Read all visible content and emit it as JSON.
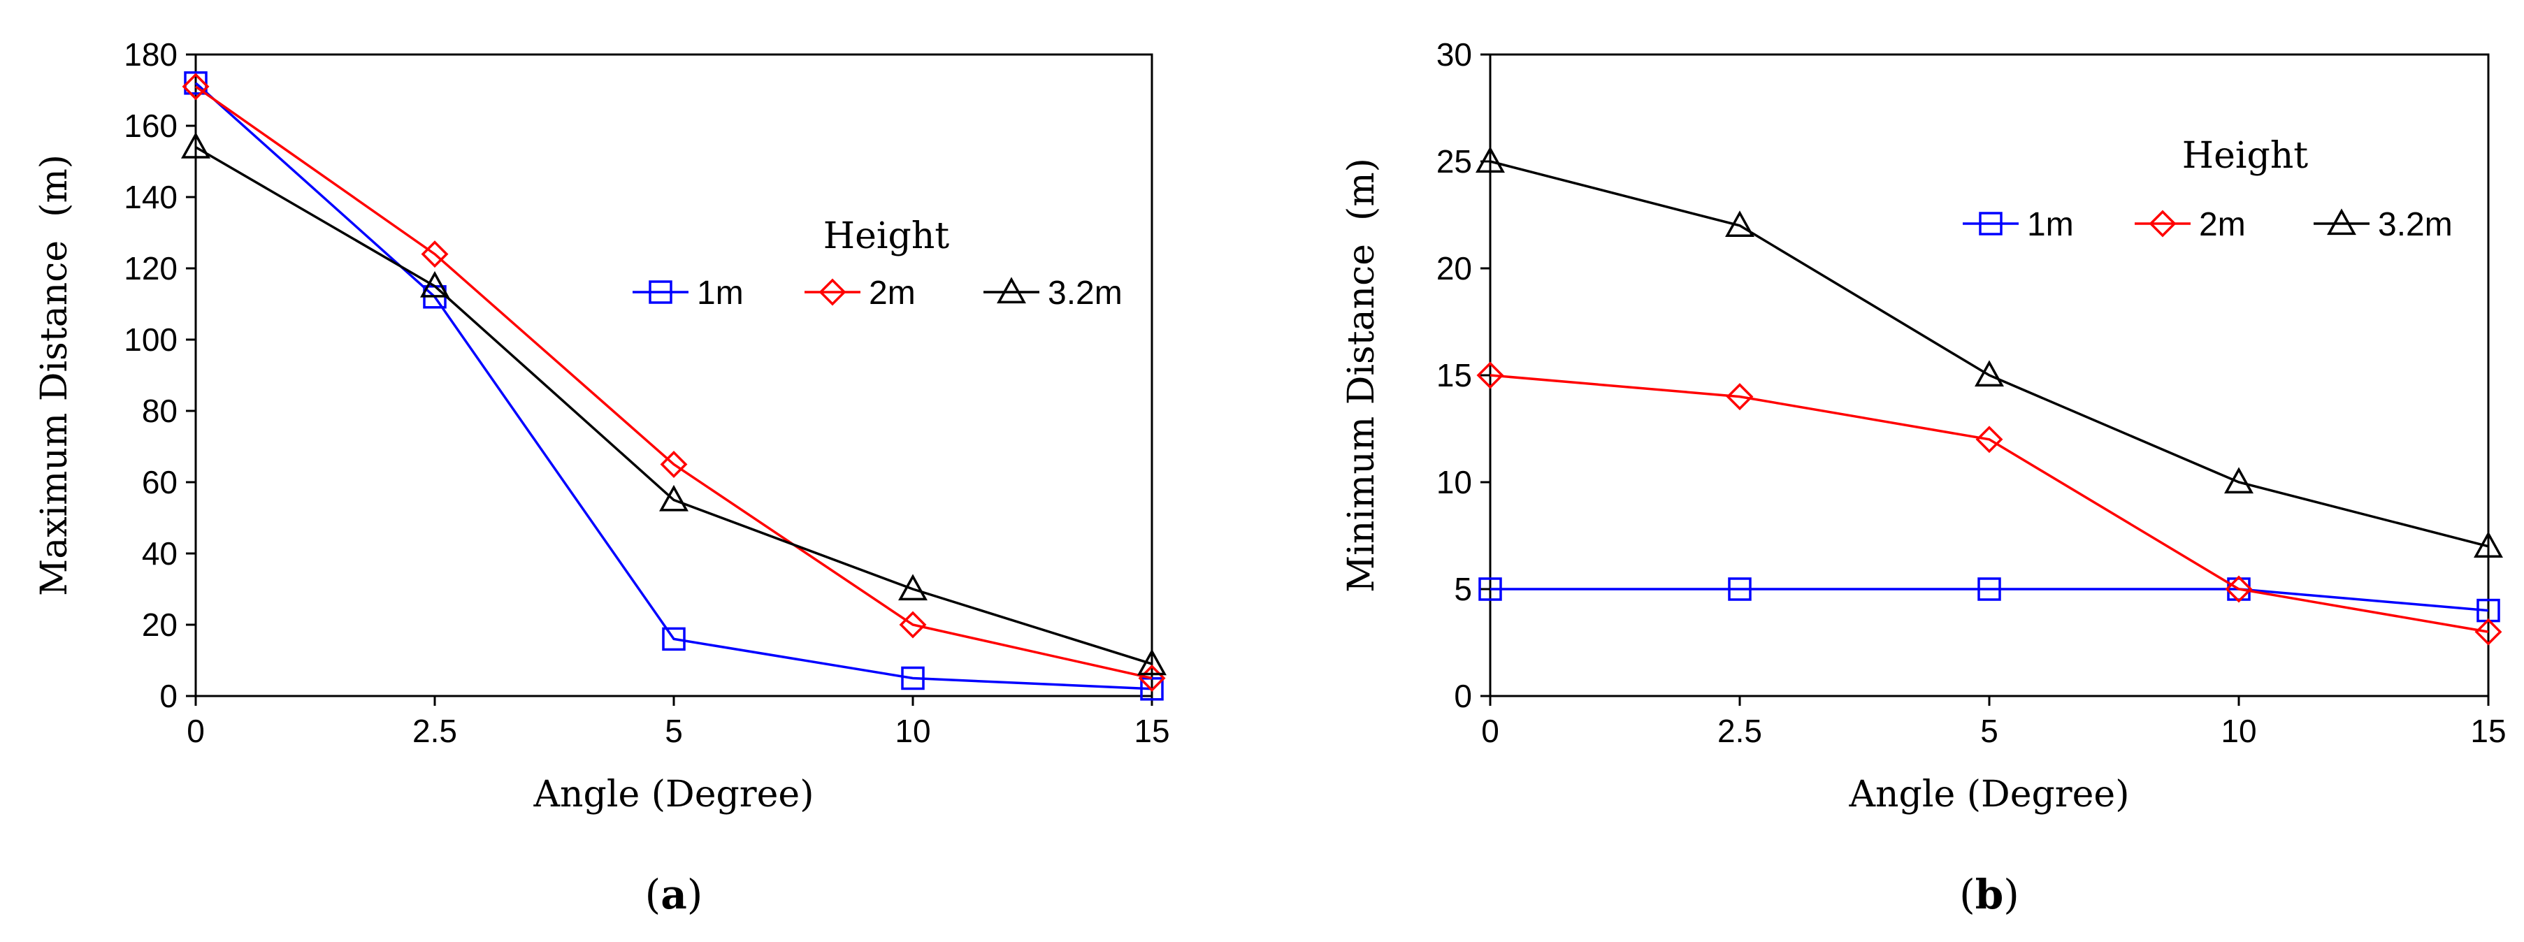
{
  "chart_data": [
    {
      "type": "line",
      "panel_label": "(a)",
      "panel_prefix": "(",
      "panel_letter": "a",
      "panel_suffix": ")",
      "categories": [
        "0",
        "2.5",
        "5",
        "10",
        "15"
      ],
      "xlabel": "Angle (Degree)",
      "ylabel": "Maximum Distance  (m)",
      "ylim": [
        0,
        180
      ],
      "yticks": [
        0,
        20,
        40,
        60,
        80,
        100,
        120,
        140,
        160,
        180
      ],
      "legend_title": "Height",
      "legend_position": "top-right",
      "series": [
        {
          "name": "1m",
          "color": "#0000FF",
          "marker": "square",
          "values": [
            172,
            112,
            16,
            5,
            2
          ]
        },
        {
          "name": "2m",
          "color": "#FF0000",
          "marker": "diamond",
          "values": [
            171,
            124,
            65,
            20,
            5
          ]
        },
        {
          "name": "3.2m",
          "color": "#000000",
          "marker": "triangle",
          "values": [
            154,
            115,
            55,
            30,
            9
          ]
        }
      ]
    },
    {
      "type": "line",
      "panel_label": "(b)",
      "panel_prefix": "(",
      "panel_letter": "b",
      "panel_suffix": ")",
      "categories": [
        "0",
        "2.5",
        "5",
        "10",
        "15"
      ],
      "xlabel": "Angle (Degree)",
      "ylabel": "Minimum Distance  (m)",
      "ylim": [
        0,
        30
      ],
      "yticks": [
        0,
        5,
        10,
        15,
        20,
        25,
        30
      ],
      "legend_title": "Height",
      "legend_position": "top-right",
      "series": [
        {
          "name": "1m",
          "color": "#0000FF",
          "marker": "square",
          "values": [
            5,
            5,
            5,
            5,
            4
          ]
        },
        {
          "name": "2m",
          "color": "#FF0000",
          "marker": "diamond",
          "values": [
            15,
            14,
            12,
            5,
            3
          ]
        },
        {
          "name": "3.2m",
          "color": "#000000",
          "marker": "triangle",
          "values": [
            25,
            22,
            15,
            10,
            7
          ]
        }
      ]
    }
  ]
}
